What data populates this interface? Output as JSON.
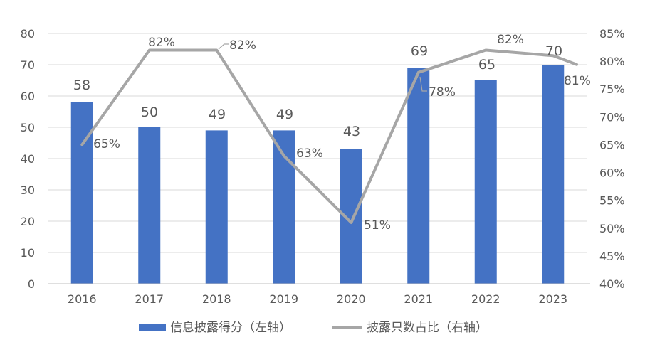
{
  "chart_data": {
    "type": "bar",
    "categories": [
      "2016",
      "2017",
      "2018",
      "2019",
      "2020",
      "2021",
      "2022",
      "2023"
    ],
    "series": [
      {
        "name": "信息披露得分（左轴）",
        "type": "bar",
        "axis": "left",
        "values": [
          58,
          50,
          49,
          49,
          43,
          69,
          65,
          70
        ],
        "labels": [
          "58",
          "50",
          "49",
          "49",
          "43",
          "69",
          "65",
          "70"
        ],
        "color": "#4472C4"
      },
      {
        "name": "披露只数占比（右轴）",
        "type": "line",
        "axis": "right",
        "values": [
          65,
          82,
          82,
          63,
          51,
          78,
          82,
          81
        ],
        "labels": [
          "65%",
          "82%",
          "82%",
          "63%",
          "51%",
          "78%",
          "82%",
          "81%"
        ],
        "color": "#A6A6A6"
      }
    ],
    "y_left": {
      "range": [
        0,
        80
      ],
      "ticks": [
        "0",
        "10",
        "20",
        "30",
        "40",
        "50",
        "60",
        "70",
        "80"
      ]
    },
    "y_right": {
      "range": [
        40,
        85
      ],
      "ticks": [
        "40%",
        "45%",
        "50%",
        "55%",
        "60%",
        "65%",
        "70%",
        "75%",
        "80%",
        "85%"
      ]
    },
    "grid": true,
    "legend_position": "bottom",
    "colors": {
      "bar": "#4472C4",
      "line": "#A6A6A6",
      "grid": "#D9D9D9",
      "text": "#595959",
      "axis": "#BFBFBF",
      "leader": "#A6A6A6"
    }
  }
}
